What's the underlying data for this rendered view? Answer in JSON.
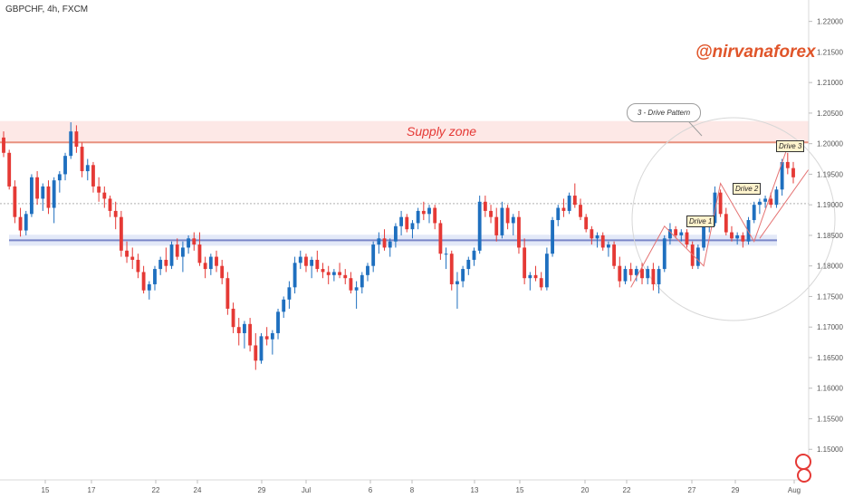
{
  "header": {
    "symbol": "GBPCHF, 4h, FXCM"
  },
  "watermark": {
    "handle": "@nirvanaforex"
  },
  "annotations": {
    "supply_zone": "Supply zone",
    "pattern_callout": "3 - Drive Pattern",
    "drive1": "Drive 1",
    "drive2": "Drive 2",
    "drive3": "Drive 3"
  },
  "colors": {
    "bull": "#1e6fbf",
    "bear": "#e53935",
    "supply_fill": "#fde8e6",
    "supply_line": "#e8917f",
    "support_fill": "#e3e9f8",
    "support_line": "#7a86c8",
    "axis_text": "#555555",
    "handle": "#e0552a"
  },
  "chart_data": {
    "type": "candlestick",
    "x_tick_labels": [
      "15",
      "17",
      "22",
      "24",
      "29",
      "Jul",
      "6",
      "8",
      "13",
      "15",
      "20",
      "22",
      "27",
      "29",
      "Aug"
    ],
    "y_tick_labels": [
      "1.22000",
      "1.21500",
      "1.21000",
      "1.20500",
      "1.20000",
      "1.19500",
      "1.19000",
      "1.18500",
      "1.18000",
      "1.17500",
      "1.17000",
      "1.16500",
      "1.16000",
      "1.15500",
      "1.15000"
    ],
    "ylim": [
      1.145,
      1.2235
    ],
    "supply_zone": [
      1.2002,
      1.2037
    ],
    "support_zone": [
      1.1833,
      1.1851
    ],
    "support_line": 1.1842,
    "dotted_level": 1.1902,
    "drive_points": [
      1.1865,
      1.1935,
      1.1995
    ],
    "candles": [
      {
        "o": 1.201,
        "h": 1.202,
        "l": 1.1978,
        "c": 1.1985
      },
      {
        "o": 1.1985,
        "h": 1.199,
        "l": 1.1925,
        "c": 1.193
      },
      {
        "o": 1.193,
        "h": 1.194,
        "l": 1.187,
        "c": 1.188
      },
      {
        "o": 1.188,
        "h": 1.1895,
        "l": 1.1848,
        "c": 1.1858
      },
      {
        "o": 1.1858,
        "h": 1.189,
        "l": 1.185,
        "c": 1.1885
      },
      {
        "o": 1.1885,
        "h": 1.195,
        "l": 1.188,
        "c": 1.1945
      },
      {
        "o": 1.1945,
        "h": 1.1955,
        "l": 1.19,
        "c": 1.191
      },
      {
        "o": 1.191,
        "h": 1.1935,
        "l": 1.189,
        "c": 1.193
      },
      {
        "o": 1.193,
        "h": 1.194,
        "l": 1.1885,
        "c": 1.1895
      },
      {
        "o": 1.1895,
        "h": 1.1945,
        "l": 1.187,
        "c": 1.194
      },
      {
        "o": 1.194,
        "h": 1.1955,
        "l": 1.192,
        "c": 1.195
      },
      {
        "o": 1.195,
        "h": 1.1985,
        "l": 1.194,
        "c": 1.198
      },
      {
        "o": 1.198,
        "h": 1.2035,
        "l": 1.1975,
        "c": 1.202
      },
      {
        "o": 1.202,
        "h": 1.203,
        "l": 1.1985,
        "c": 1.1995
      },
      {
        "o": 1.1995,
        "h": 1.2002,
        "l": 1.1945,
        "c": 1.1955
      },
      {
        "o": 1.1955,
        "h": 1.1975,
        "l": 1.194,
        "c": 1.1965
      },
      {
        "o": 1.1965,
        "h": 1.197,
        "l": 1.192,
        "c": 1.193
      },
      {
        "o": 1.193,
        "h": 1.1945,
        "l": 1.1905,
        "c": 1.192
      },
      {
        "o": 1.192,
        "h": 1.193,
        "l": 1.1895,
        "c": 1.191
      },
      {
        "o": 1.191,
        "h": 1.1915,
        "l": 1.188,
        "c": 1.189
      },
      {
        "o": 1.189,
        "h": 1.1905,
        "l": 1.186,
        "c": 1.188
      },
      {
        "o": 1.188,
        "h": 1.189,
        "l": 1.1815,
        "c": 1.1825
      },
      {
        "o": 1.1825,
        "h": 1.184,
        "l": 1.1805,
        "c": 1.1815
      },
      {
        "o": 1.1815,
        "h": 1.183,
        "l": 1.1795,
        "c": 1.181
      },
      {
        "o": 1.181,
        "h": 1.182,
        "l": 1.178,
        "c": 1.179
      },
      {
        "o": 1.179,
        "h": 1.18,
        "l": 1.1755,
        "c": 1.176
      },
      {
        "o": 1.176,
        "h": 1.1775,
        "l": 1.1745,
        "c": 1.177
      },
      {
        "o": 1.177,
        "h": 1.18,
        "l": 1.176,
        "c": 1.1795
      },
      {
        "o": 1.1795,
        "h": 1.1815,
        "l": 1.1785,
        "c": 1.181
      },
      {
        "o": 1.181,
        "h": 1.183,
        "l": 1.179,
        "c": 1.18
      },
      {
        "o": 1.18,
        "h": 1.184,
        "l": 1.1795,
        "c": 1.1835
      },
      {
        "o": 1.1835,
        "h": 1.1845,
        "l": 1.181,
        "c": 1.1815
      },
      {
        "o": 1.1815,
        "h": 1.184,
        "l": 1.179,
        "c": 1.183
      },
      {
        "o": 1.183,
        "h": 1.185,
        "l": 1.182,
        "c": 1.1845
      },
      {
        "o": 1.1845,
        "h": 1.1855,
        "l": 1.1825,
        "c": 1.1835
      },
      {
        "o": 1.1835,
        "h": 1.1855,
        "l": 1.18,
        "c": 1.1805
      },
      {
        "o": 1.1805,
        "h": 1.1815,
        "l": 1.178,
        "c": 1.1795
      },
      {
        "o": 1.1795,
        "h": 1.182,
        "l": 1.1785,
        "c": 1.1815
      },
      {
        "o": 1.1815,
        "h": 1.1825,
        "l": 1.179,
        "c": 1.18
      },
      {
        "o": 1.18,
        "h": 1.181,
        "l": 1.177,
        "c": 1.178
      },
      {
        "o": 1.178,
        "h": 1.179,
        "l": 1.172,
        "c": 1.173
      },
      {
        "o": 1.173,
        "h": 1.174,
        "l": 1.169,
        "c": 1.17
      },
      {
        "o": 1.17,
        "h": 1.1715,
        "l": 1.167,
        "c": 1.169
      },
      {
        "o": 1.169,
        "h": 1.171,
        "l": 1.1665,
        "c": 1.1705
      },
      {
        "o": 1.1705,
        "h": 1.1715,
        "l": 1.166,
        "c": 1.167
      },
      {
        "o": 1.167,
        "h": 1.169,
        "l": 1.163,
        "c": 1.1645
      },
      {
        "o": 1.1645,
        "h": 1.169,
        "l": 1.164,
        "c": 1.1685
      },
      {
        "o": 1.1685,
        "h": 1.17,
        "l": 1.167,
        "c": 1.168
      },
      {
        "o": 1.168,
        "h": 1.1695,
        "l": 1.1655,
        "c": 1.169
      },
      {
        "o": 1.169,
        "h": 1.173,
        "l": 1.168,
        "c": 1.1725
      },
      {
        "o": 1.1725,
        "h": 1.175,
        "l": 1.1715,
        "c": 1.1745
      },
      {
        "o": 1.1745,
        "h": 1.1775,
        "l": 1.173,
        "c": 1.1765
      },
      {
        "o": 1.1765,
        "h": 1.1815,
        "l": 1.1755,
        "c": 1.1805
      },
      {
        "o": 1.1805,
        "h": 1.1825,
        "l": 1.1795,
        "c": 1.1815
      },
      {
        "o": 1.1815,
        "h": 1.182,
        "l": 1.179,
        "c": 1.18
      },
      {
        "o": 1.18,
        "h": 1.1815,
        "l": 1.178,
        "c": 1.181
      },
      {
        "o": 1.181,
        "h": 1.1825,
        "l": 1.179,
        "c": 1.1795
      },
      {
        "o": 1.1795,
        "h": 1.1805,
        "l": 1.178,
        "c": 1.179
      },
      {
        "o": 1.179,
        "h": 1.18,
        "l": 1.177,
        "c": 1.1785
      },
      {
        "o": 1.1785,
        "h": 1.1795,
        "l": 1.1775,
        "c": 1.179
      },
      {
        "o": 1.179,
        "h": 1.1805,
        "l": 1.178,
        "c": 1.1785
      },
      {
        "o": 1.1785,
        "h": 1.1795,
        "l": 1.177,
        "c": 1.178
      },
      {
        "o": 1.178,
        "h": 1.179,
        "l": 1.1755,
        "c": 1.176
      },
      {
        "o": 1.176,
        "h": 1.1775,
        "l": 1.173,
        "c": 1.1765
      },
      {
        "o": 1.1765,
        "h": 1.179,
        "l": 1.1755,
        "c": 1.1785
      },
      {
        "o": 1.1785,
        "h": 1.1805,
        "l": 1.1775,
        "c": 1.18
      },
      {
        "o": 1.18,
        "h": 1.184,
        "l": 1.179,
        "c": 1.1835
      },
      {
        "o": 1.1835,
        "h": 1.1855,
        "l": 1.182,
        "c": 1.1845
      },
      {
        "o": 1.1845,
        "h": 1.186,
        "l": 1.1825,
        "c": 1.183
      },
      {
        "o": 1.183,
        "h": 1.1845,
        "l": 1.1815,
        "c": 1.184
      },
      {
        "o": 1.184,
        "h": 1.187,
        "l": 1.183,
        "c": 1.1865
      },
      {
        "o": 1.1865,
        "h": 1.189,
        "l": 1.185,
        "c": 1.188
      },
      {
        "o": 1.188,
        "h": 1.1885,
        "l": 1.1855,
        "c": 1.186
      },
      {
        "o": 1.186,
        "h": 1.1875,
        "l": 1.1845,
        "c": 1.187
      },
      {
        "o": 1.187,
        "h": 1.1895,
        "l": 1.186,
        "c": 1.189
      },
      {
        "o": 1.189,
        "h": 1.1905,
        "l": 1.1875,
        "c": 1.1885
      },
      {
        "o": 1.1885,
        "h": 1.19,
        "l": 1.187,
        "c": 1.1895
      },
      {
        "o": 1.1895,
        "h": 1.19,
        "l": 1.186,
        "c": 1.187
      },
      {
        "o": 1.187,
        "h": 1.1875,
        "l": 1.181,
        "c": 1.182
      },
      {
        "o": 1.182,
        "h": 1.183,
        "l": 1.1795,
        "c": 1.182
      },
      {
        "o": 1.182,
        "h": 1.1825,
        "l": 1.176,
        "c": 1.177
      },
      {
        "o": 1.177,
        "h": 1.179,
        "l": 1.173,
        "c": 1.1775
      },
      {
        "o": 1.1775,
        "h": 1.18,
        "l": 1.1765,
        "c": 1.1795
      },
      {
        "o": 1.1795,
        "h": 1.1815,
        "l": 1.1785,
        "c": 1.181
      },
      {
        "o": 1.181,
        "h": 1.183,
        "l": 1.18,
        "c": 1.1825
      },
      {
        "o": 1.1825,
        "h": 1.1915,
        "l": 1.182,
        "c": 1.1905
      },
      {
        "o": 1.1905,
        "h": 1.1915,
        "l": 1.188,
        "c": 1.189
      },
      {
        "o": 1.189,
        "h": 1.19,
        "l": 1.187,
        "c": 1.188
      },
      {
        "o": 1.188,
        "h": 1.1895,
        "l": 1.184,
        "c": 1.185
      },
      {
        "o": 1.185,
        "h": 1.1905,
        "l": 1.1845,
        "c": 1.1895
      },
      {
        "o": 1.1895,
        "h": 1.19,
        "l": 1.186,
        "c": 1.187
      },
      {
        "o": 1.187,
        "h": 1.1885,
        "l": 1.185,
        "c": 1.188
      },
      {
        "o": 1.188,
        "h": 1.189,
        "l": 1.182,
        "c": 1.183
      },
      {
        "o": 1.183,
        "h": 1.1845,
        "l": 1.177,
        "c": 1.178
      },
      {
        "o": 1.178,
        "h": 1.179,
        "l": 1.176,
        "c": 1.1785
      },
      {
        "o": 1.1785,
        "h": 1.18,
        "l": 1.1775,
        "c": 1.178
      },
      {
        "o": 1.178,
        "h": 1.179,
        "l": 1.176,
        "c": 1.1765
      },
      {
        "o": 1.1765,
        "h": 1.183,
        "l": 1.176,
        "c": 1.182
      },
      {
        "o": 1.182,
        "h": 1.188,
        "l": 1.1815,
        "c": 1.1875
      },
      {
        "o": 1.1875,
        "h": 1.19,
        "l": 1.1865,
        "c": 1.1895
      },
      {
        "o": 1.1895,
        "h": 1.191,
        "l": 1.188,
        "c": 1.189
      },
      {
        "o": 1.189,
        "h": 1.192,
        "l": 1.1885,
        "c": 1.1915
      },
      {
        "o": 1.1915,
        "h": 1.1935,
        "l": 1.1895,
        "c": 1.19
      },
      {
        "o": 1.19,
        "h": 1.191,
        "l": 1.1875,
        "c": 1.188
      },
      {
        "o": 1.188,
        "h": 1.1885,
        "l": 1.1855,
        "c": 1.186
      },
      {
        "o": 1.186,
        "h": 1.1865,
        "l": 1.1835,
        "c": 1.1845
      },
      {
        "o": 1.1845,
        "h": 1.1855,
        "l": 1.183,
        "c": 1.185
      },
      {
        "o": 1.185,
        "h": 1.1855,
        "l": 1.1825,
        "c": 1.183
      },
      {
        "o": 1.183,
        "h": 1.184,
        "l": 1.1815,
        "c": 1.1835
      },
      {
        "o": 1.1835,
        "h": 1.184,
        "l": 1.1795,
        "c": 1.18
      },
      {
        "o": 1.18,
        "h": 1.1815,
        "l": 1.1765,
        "c": 1.1775
      },
      {
        "o": 1.1775,
        "h": 1.18,
        "l": 1.177,
        "c": 1.1795
      },
      {
        "o": 1.1795,
        "h": 1.1805,
        "l": 1.1775,
        "c": 1.1785
      },
      {
        "o": 1.1785,
        "h": 1.18,
        "l": 1.1775,
        "c": 1.1795
      },
      {
        "o": 1.1795,
        "h": 1.1805,
        "l": 1.177,
        "c": 1.178
      },
      {
        "o": 1.178,
        "h": 1.18,
        "l": 1.177,
        "c": 1.1795
      },
      {
        "o": 1.1795,
        "h": 1.1805,
        "l": 1.176,
        "c": 1.177
      },
      {
        "o": 1.177,
        "h": 1.18,
        "l": 1.1755,
        "c": 1.1795
      },
      {
        "o": 1.1795,
        "h": 1.185,
        "l": 1.179,
        "c": 1.1845
      },
      {
        "o": 1.1845,
        "h": 1.187,
        "l": 1.1835,
        "c": 1.186
      },
      {
        "o": 1.186,
        "h": 1.1865,
        "l": 1.1845,
        "c": 1.185
      },
      {
        "o": 1.185,
        "h": 1.186,
        "l": 1.184,
        "c": 1.1855
      },
      {
        "o": 1.1855,
        "h": 1.186,
        "l": 1.183,
        "c": 1.1835
      },
      {
        "o": 1.1835,
        "h": 1.184,
        "l": 1.1795,
        "c": 1.18
      },
      {
        "o": 1.18,
        "h": 1.1835,
        "l": 1.1795,
        "c": 1.183
      },
      {
        "o": 1.183,
        "h": 1.187,
        "l": 1.1825,
        "c": 1.1865
      },
      {
        "o": 1.1865,
        "h": 1.1875,
        "l": 1.1855,
        "c": 1.187
      },
      {
        "o": 1.187,
        "h": 1.193,
        "l": 1.1865,
        "c": 1.192
      },
      {
        "o": 1.192,
        "h": 1.1925,
        "l": 1.188,
        "c": 1.1885
      },
      {
        "o": 1.1885,
        "h": 1.1895,
        "l": 1.185,
        "c": 1.1855
      },
      {
        "o": 1.1855,
        "h": 1.1865,
        "l": 1.184,
        "c": 1.1845
      },
      {
        "o": 1.1845,
        "h": 1.1855,
        "l": 1.1835,
        "c": 1.185
      },
      {
        "o": 1.185,
        "h": 1.1855,
        "l": 1.183,
        "c": 1.184
      },
      {
        "o": 1.184,
        "h": 1.188,
        "l": 1.1835,
        "c": 1.1875
      },
      {
        "o": 1.1875,
        "h": 1.1905,
        "l": 1.187,
        "c": 1.19
      },
      {
        "o": 1.19,
        "h": 1.191,
        "l": 1.1885,
        "c": 1.1905
      },
      {
        "o": 1.1905,
        "h": 1.1915,
        "l": 1.1895,
        "c": 1.191
      },
      {
        "o": 1.191,
        "h": 1.192,
        "l": 1.1895,
        "c": 1.19
      },
      {
        "o": 1.19,
        "h": 1.193,
        "l": 1.1895,
        "c": 1.1925
      },
      {
        "o": 1.1925,
        "h": 1.1975,
        "l": 1.1915,
        "c": 1.197
      },
      {
        "o": 1.197,
        "h": 1.1985,
        "l": 1.195,
        "c": 1.196
      },
      {
        "o": 1.196,
        "h": 1.197,
        "l": 1.1935,
        "c": 1.1945
      }
    ]
  }
}
